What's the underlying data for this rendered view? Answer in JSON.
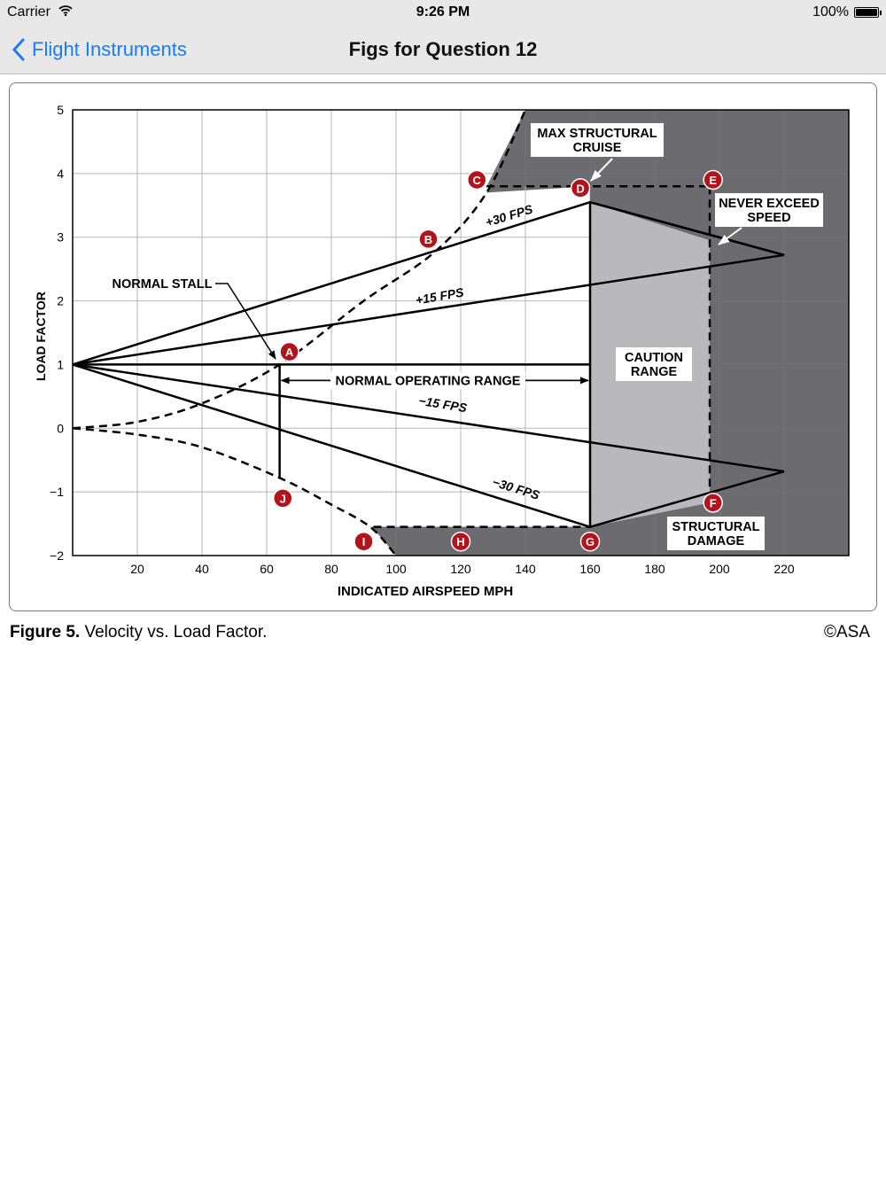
{
  "status_bar": {
    "carrier": "Carrier",
    "time": "9:26 PM",
    "battery": "100%",
    "battery_level": 1.0
  },
  "nav": {
    "back_label": "Flight Instruments",
    "title": "Figs for Question 12"
  },
  "caption": {
    "figure_label": "Figure 5.",
    "text": "Velocity vs. Load Factor.",
    "copyright": "©ASA"
  },
  "chart_data": {
    "type": "line",
    "title": "",
    "xlabel": "INDICATED AIRSPEED MPH",
    "ylabel": "LOAD FACTOR",
    "xlim": [
      0,
      240
    ],
    "ylim": [
      -2,
      5
    ],
    "grid": true,
    "xticks": [
      20,
      40,
      60,
      80,
      100,
      120,
      140,
      160,
      180,
      200,
      220
    ],
    "yticks": [
      5,
      4,
      3,
      2,
      1,
      0,
      -1,
      -2
    ],
    "series": [
      {
        "name": "+30 FPS",
        "x": [
          0,
          160,
          220
        ],
        "y": [
          1,
          3.55,
          2.72
        ]
      },
      {
        "name": "+15 FPS",
        "x": [
          0,
          220
        ],
        "y": [
          1,
          2.72
        ]
      },
      {
        "name": "−15 FPS",
        "x": [
          0,
          220
        ],
        "y": [
          1,
          -0.68
        ]
      },
      {
        "name": "−30 FPS",
        "x": [
          0,
          160,
          220
        ],
        "y": [
          1,
          -1.55,
          -0.68
        ]
      }
    ],
    "stall_curve_positive": {
      "x": [
        0,
        20,
        40,
        64,
        90,
        112,
        128,
        140
      ],
      "y": [
        0,
        0.1,
        0.39,
        1.0,
        2.0,
        2.77,
        3.7,
        5.0
      ]
    },
    "stall_curve_negative": {
      "x": [
        0,
        20,
        40,
        64,
        80,
        92,
        100
      ],
      "y": [
        0,
        -0.1,
        -0.3,
        -0.78,
        -1.2,
        -1.55,
        -2.0
      ]
    },
    "points": [
      {
        "label": "A",
        "x": 67,
        "y": 1.2
      },
      {
        "label": "B",
        "x": 110,
        "y": 2.97
      },
      {
        "label": "C",
        "x": 125,
        "y": 3.9
      },
      {
        "label": "D",
        "x": 157,
        "y": 3.77
      },
      {
        "label": "E",
        "x": 198,
        "y": 3.9
      },
      {
        "label": "F",
        "x": 198,
        "y": -1.17
      },
      {
        "label": "G",
        "x": 160,
        "y": -1.78
      },
      {
        "label": "H",
        "x": 120,
        "y": -1.78
      },
      {
        "label": "I",
        "x": 90,
        "y": -1.78
      },
      {
        "label": "J",
        "x": 65,
        "y": -1.1
      }
    ],
    "annotations": [
      {
        "text": "NORMAL STALL"
      },
      {
        "text": "NORMAL OPERATING RANGE"
      },
      {
        "text": "CAUTION RANGE"
      },
      {
        "text": "MAX STRUCTURAL CRUISE"
      },
      {
        "text": "NEVER EXCEED SPEED"
      },
      {
        "text": "STRUCTURAL DAMAGE"
      }
    ],
    "regions": {
      "caution_range_x": [
        160,
        197
      ],
      "never_exceed_x": 197,
      "max_structural_cruise_x": 160,
      "limit_load_positive": 3.8,
      "limit_load_negative": -1.52
    },
    "colors": {
      "dark_region": "#6c6c70",
      "caution_region": "#b9b9bd",
      "point_marker": "#b3131b"
    }
  }
}
